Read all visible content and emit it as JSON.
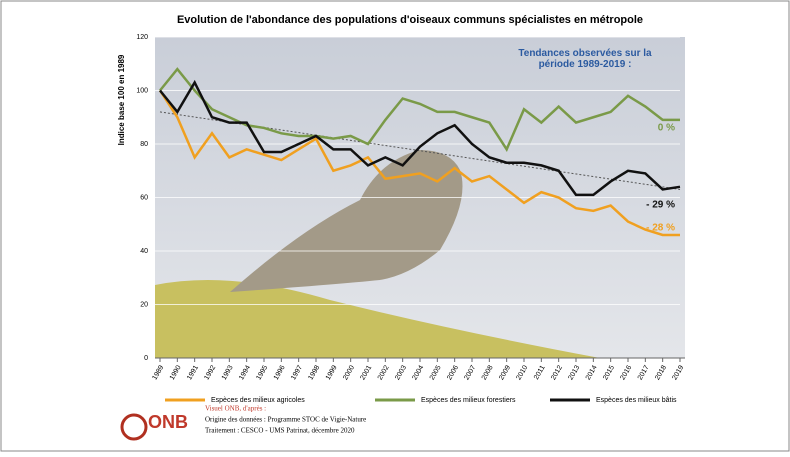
{
  "chart_data": {
    "type": "line",
    "title": "Evolution de l'abondance des populations d'oiseaux communs spécialistes en métropole",
    "y_label": "Indice base 100 en 1989",
    "annotation": "Tendances observées sur la période 1989-2019 :",
    "x": [
      1989,
      1990,
      1991,
      1992,
      1993,
      1994,
      1995,
      1996,
      1997,
      1998,
      1999,
      2000,
      2001,
      2002,
      2003,
      2004,
      2005,
      2006,
      2007,
      2008,
      2009,
      2010,
      2011,
      2012,
      2013,
      2014,
      2015,
      2016,
      2017,
      2018,
      2019
    ],
    "xlim": [
      1989,
      2019
    ],
    "xticks": [
      1989,
      1990,
      1991,
      1992,
      1993,
      1994,
      1995,
      1996,
      1997,
      1998,
      1999,
      2000,
      2001,
      2002,
      2003,
      2004,
      2005,
      2006,
      2007,
      2008,
      2009,
      2010,
      2011,
      2012,
      2013,
      2014,
      2015,
      2016,
      2017,
      2018,
      2019
    ],
    "ylim": [
      0,
      120
    ],
    "yticks": [
      0,
      20,
      40,
      60,
      80,
      100,
      120
    ],
    "grid": true,
    "series": [
      {
        "name": "Espèces des milieux agricoles",
        "color": "#f0a020",
        "trend_label": "- 28 %",
        "values": [
          100,
          90,
          75,
          84,
          75,
          78,
          76,
          74,
          78,
          82,
          70,
          72,
          75,
          67,
          68,
          69,
          66,
          71,
          66,
          68,
          63,
          58,
          62,
          60,
          56,
          55,
          57,
          51,
          48,
          46,
          46
        ]
      },
      {
        "name": "Espèces des milieux forestiers",
        "color": "#7a9a48",
        "trend_label": "0 %",
        "values": [
          100,
          108,
          100,
          93,
          90,
          87,
          86,
          84,
          83,
          83,
          82,
          83,
          80,
          89,
          97,
          95,
          92,
          92,
          90,
          88,
          78,
          93,
          88,
          94,
          88,
          90,
          92,
          98,
          94,
          89,
          89
        ]
      },
      {
        "name": "Espèces des milieux bâtis",
        "color": "#111111",
        "trend_label": "- 29 %",
        "values": [
          100,
          92,
          103,
          90,
          88,
          88,
          77,
          77,
          80,
          83,
          78,
          78,
          72,
          75,
          72,
          79,
          84,
          87,
          80,
          75,
          73,
          73,
          72,
          70,
          61,
          61,
          66,
          70,
          69,
          63,
          64
        ]
      }
    ],
    "trend_line": {
      "x": [
        1989,
        2019
      ],
      "values": [
        92,
        63
      ]
    },
    "footer": {
      "logo": "ONB",
      "credit": "Visuel ONB, d'après :",
      "source": "Origine des données : Programme STOC de Vigie-Nature",
      "processing": "Traitement : CESCO - UMS Patrinat, décembre 2020"
    }
  }
}
